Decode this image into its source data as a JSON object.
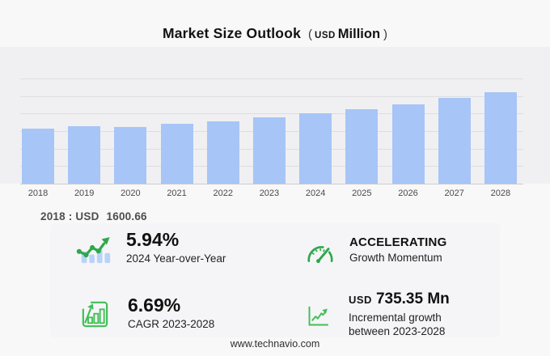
{
  "colors": {
    "accent_green": "#2fa84c",
    "accent_green_bright": "#3fbf55",
    "bar_blue": "#a7c5f6",
    "icon_bar_blue": "#b9d3f8"
  },
  "title": {
    "main": "Market Size Outlook",
    "unit_open": "(",
    "unit_currency": "USD",
    "unit_word": "Million",
    "unit_close": ")"
  },
  "chart_data": {
    "type": "bar",
    "title": "Market Size Outlook",
    "unit": "USD Million",
    "categories": [
      "2018",
      "2019",
      "2020",
      "2021",
      "2022",
      "2023",
      "2024",
      "2025",
      "2026",
      "2027",
      "2028"
    ],
    "values": [
      1600.66,
      1679,
      1642,
      1737,
      1823,
      1923.2,
      2037.4,
      2174,
      2318,
      2501,
      2658.6
    ],
    "ylim": [
      0,
      3060
    ],
    "gridline_count": 7,
    "grid": "horizontal",
    "legend": "none",
    "y_axis_labels": "none",
    "bar_color": "#a7c5f6",
    "base_year_annotation": "2018 : USD 1600.66"
  },
  "annotation": {
    "prefix": "2018 : USD",
    "value": "1600.66"
  },
  "stats": {
    "yoy": {
      "value": "5.94%",
      "label": "2024 Year-over-Year",
      "icon": "bar-chart-trend-icon"
    },
    "momentum": {
      "value": "ACCELERATING",
      "label": "Growth Momentum",
      "icon": "speedometer-icon"
    },
    "cagr": {
      "value": "6.69%",
      "label": "CAGR 2023-2028",
      "icon": "framed-bar-growth-icon"
    },
    "incremental": {
      "currency": "USD",
      "value": "735.35 Mn",
      "label_line1": "Incremental growth",
      "label_line2": "between 2023-2028",
      "icon": "line-growth-icon"
    }
  },
  "footer": {
    "url": "www.technavio.com"
  }
}
